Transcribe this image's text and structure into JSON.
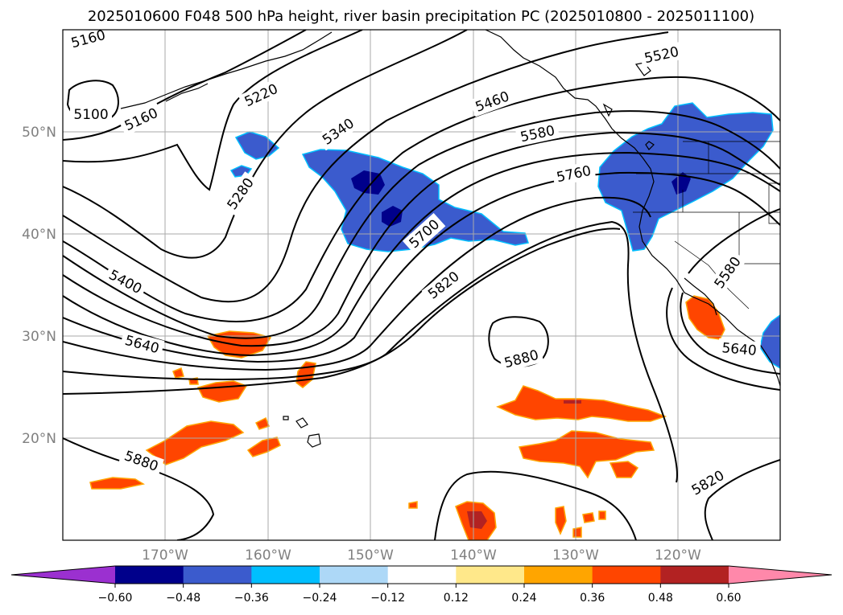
{
  "title": "2025010600 F048 500 hPa height, river basin precipitation PC (2025010800 - 2025011100)",
  "map": {
    "lon_range": [
      -180,
      -110
    ],
    "lat_range": [
      10,
      60
    ],
    "lat_ticks": [
      "20°N",
      "30°N",
      "40°N",
      "50°N"
    ],
    "lon_ticks": [
      "170°W",
      "160°W",
      "150°W",
      "140°W",
      "130°W",
      "120°W"
    ],
    "grid": true
  },
  "contour_labels": [
    "5160",
    "5100",
    "5160",
    "5220",
    "5280",
    "5340",
    "5400",
    "5460",
    "5520",
    "5580",
    "5640",
    "5700",
    "5760",
    "5820",
    "5880",
    "5880",
    "5580",
    "5640",
    "5820"
  ],
  "colorbar": {
    "ticks": [
      "−0.60",
      "−0.48",
      "−0.36",
      "−0.24",
      "−0.12",
      "0.12",
      "0.24",
      "0.36",
      "0.48",
      "0.60"
    ],
    "colors": [
      "#9b30d0",
      "#00008b",
      "#3b5bcd",
      "#00bfff",
      "#add8f7",
      "#ffffff",
      "#ffe88a",
      "#ffa500",
      "#ff4500",
      "#b22222",
      "#ff88aa"
    ]
  },
  "shade_colors": {
    "neg_strong": "#00008b",
    "neg": "#3b5bcd",
    "neg_edge": "#00bfff",
    "pos": "#ff4500",
    "pos_edge": "#ffa500",
    "pos_strong": "#b22222"
  }
}
